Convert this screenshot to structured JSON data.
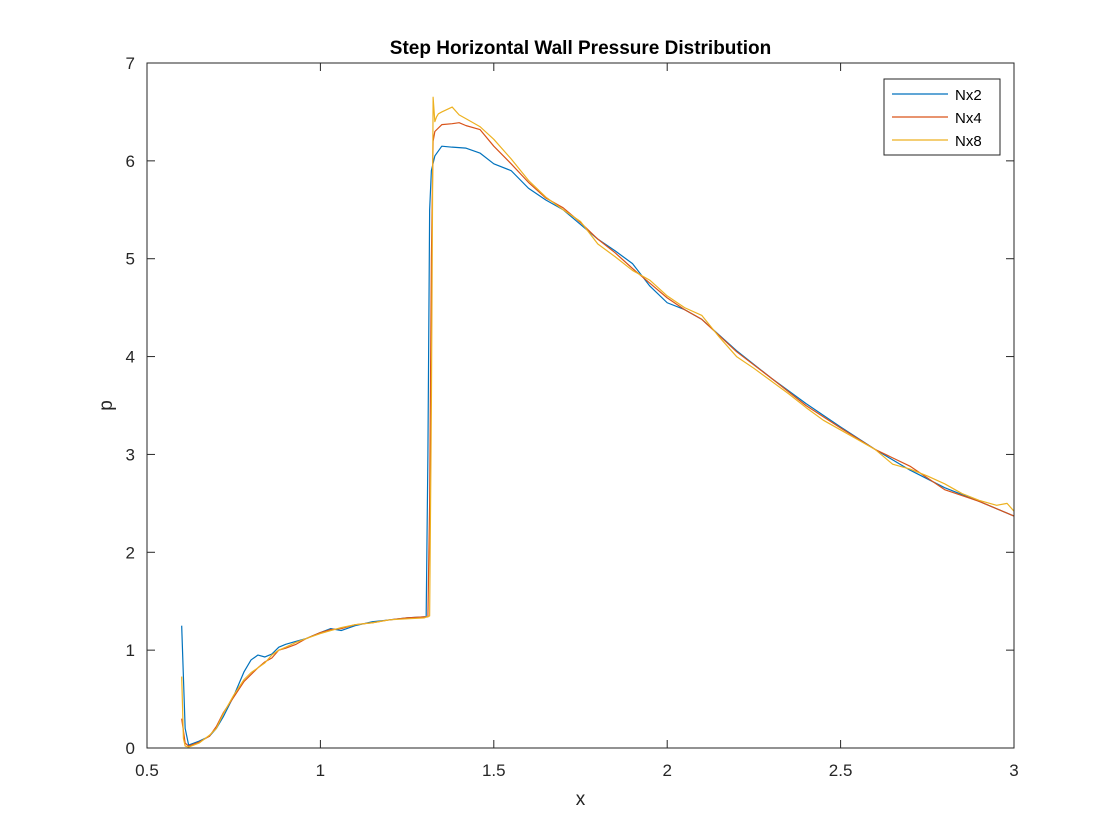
{
  "chart_data": {
    "type": "line",
    "title": "Step Horizontal Wall Pressure Distribution",
    "xlabel": "x",
    "ylabel": "p",
    "xlim": [
      0.5,
      3
    ],
    "ylim": [
      0,
      7
    ],
    "xticks": [
      "0.5",
      "1",
      "1.5",
      "2",
      "2.5",
      "3"
    ],
    "yticks": [
      "0",
      "1",
      "2",
      "3",
      "4",
      "5",
      "6",
      "7"
    ],
    "grid": false,
    "legend_position": "top-right",
    "series": [
      {
        "name": "Nx2",
        "color": "#0072BD",
        "x": [
          0.6,
          0.61,
          0.62,
          0.65,
          0.68,
          0.7,
          0.72,
          0.75,
          0.78,
          0.8,
          0.82,
          0.84,
          0.86,
          0.88,
          0.9,
          0.93,
          0.96,
          1.0,
          1.03,
          1.06,
          1.1,
          1.15,
          1.2,
          1.25,
          1.3,
          1.305,
          1.31,
          1.315,
          1.32,
          1.33,
          1.35,
          1.38,
          1.42,
          1.46,
          1.5,
          1.55,
          1.6,
          1.65,
          1.7,
          1.75,
          1.8,
          1.85,
          1.9,
          1.95,
          2.0,
          2.05,
          2.1,
          2.2,
          2.3,
          2.4,
          2.5,
          2.6,
          2.7,
          2.8,
          2.9,
          3.0
        ],
        "y": [
          1.25,
          0.2,
          0.03,
          0.07,
          0.12,
          0.2,
          0.32,
          0.53,
          0.78,
          0.9,
          0.95,
          0.93,
          0.96,
          1.03,
          1.06,
          1.09,
          1.12,
          1.18,
          1.22,
          1.2,
          1.25,
          1.29,
          1.31,
          1.33,
          1.34,
          1.34,
          3.0,
          5.5,
          5.9,
          6.05,
          6.15,
          6.14,
          6.13,
          6.08,
          5.97,
          5.9,
          5.72,
          5.6,
          5.5,
          5.35,
          5.2,
          5.08,
          4.95,
          4.72,
          4.55,
          4.48,
          4.38,
          4.06,
          3.78,
          3.52,
          3.28,
          3.05,
          2.84,
          2.66,
          2.52,
          2.37
        ]
      },
      {
        "name": "Nx4",
        "color": "#D95319",
        "x": [
          0.6,
          0.61,
          0.62,
          0.65,
          0.68,
          0.7,
          0.72,
          0.75,
          0.78,
          0.8,
          0.82,
          0.84,
          0.86,
          0.88,
          0.9,
          0.93,
          0.96,
          1.0,
          1.03,
          1.06,
          1.1,
          1.15,
          1.2,
          1.25,
          1.3,
          1.31,
          1.315,
          1.32,
          1.325,
          1.33,
          1.35,
          1.38,
          1.4,
          1.42,
          1.46,
          1.5,
          1.55,
          1.6,
          1.65,
          1.7,
          1.75,
          1.8,
          1.85,
          1.9,
          1.95,
          2.0,
          2.05,
          2.1,
          2.2,
          2.3,
          2.4,
          2.5,
          2.6,
          2.7,
          2.8,
          2.9,
          3.0
        ],
        "y": [
          0.3,
          0.05,
          0.02,
          0.06,
          0.12,
          0.22,
          0.36,
          0.52,
          0.68,
          0.75,
          0.82,
          0.88,
          0.92,
          1.0,
          1.02,
          1.06,
          1.12,
          1.18,
          1.21,
          1.22,
          1.26,
          1.28,
          1.31,
          1.33,
          1.34,
          1.34,
          2.5,
          5.0,
          6.2,
          6.3,
          6.37,
          6.38,
          6.39,
          6.36,
          6.32,
          6.15,
          5.97,
          5.78,
          5.62,
          5.52,
          5.37,
          5.2,
          5.06,
          4.9,
          4.75,
          4.6,
          4.48,
          4.38,
          4.05,
          3.78,
          3.5,
          3.27,
          3.05,
          2.88,
          2.64,
          2.52,
          2.37
        ]
      },
      {
        "name": "Nx8",
        "color": "#EDB120",
        "x": [
          0.6,
          0.605,
          0.61,
          0.62,
          0.65,
          0.68,
          0.7,
          0.72,
          0.75,
          0.78,
          0.8,
          0.82,
          0.84,
          0.86,
          0.88,
          0.9,
          0.93,
          0.96,
          1.0,
          1.03,
          1.06,
          1.1,
          1.15,
          1.2,
          1.25,
          1.3,
          1.315,
          1.32,
          1.325,
          1.33,
          1.335,
          1.34,
          1.35,
          1.38,
          1.4,
          1.42,
          1.46,
          1.5,
          1.55,
          1.6,
          1.65,
          1.7,
          1.75,
          1.8,
          1.85,
          1.9,
          1.95,
          2.0,
          2.05,
          2.1,
          2.15,
          2.2,
          2.25,
          2.3,
          2.35,
          2.4,
          2.45,
          2.5,
          2.55,
          2.6,
          2.65,
          2.7,
          2.75,
          2.8,
          2.85,
          2.9,
          2.95,
          2.98,
          3.0
        ],
        "y": [
          0.73,
          0.1,
          0.02,
          0.01,
          0.05,
          0.13,
          0.2,
          0.35,
          0.54,
          0.7,
          0.77,
          0.82,
          0.87,
          0.95,
          1.0,
          1.03,
          1.08,
          1.12,
          1.17,
          1.2,
          1.23,
          1.26,
          1.28,
          1.31,
          1.32,
          1.33,
          1.35,
          3.5,
          6.65,
          6.4,
          6.45,
          6.48,
          6.5,
          6.55,
          6.47,
          6.43,
          6.35,
          6.22,
          6.02,
          5.8,
          5.63,
          5.5,
          5.38,
          5.15,
          5.02,
          4.88,
          4.78,
          4.62,
          4.5,
          4.42,
          4.2,
          4.0,
          3.88,
          3.75,
          3.62,
          3.48,
          3.35,
          3.25,
          3.15,
          3.05,
          2.9,
          2.85,
          2.78,
          2.7,
          2.6,
          2.53,
          2.48,
          2.5,
          2.42
        ]
      }
    ]
  }
}
